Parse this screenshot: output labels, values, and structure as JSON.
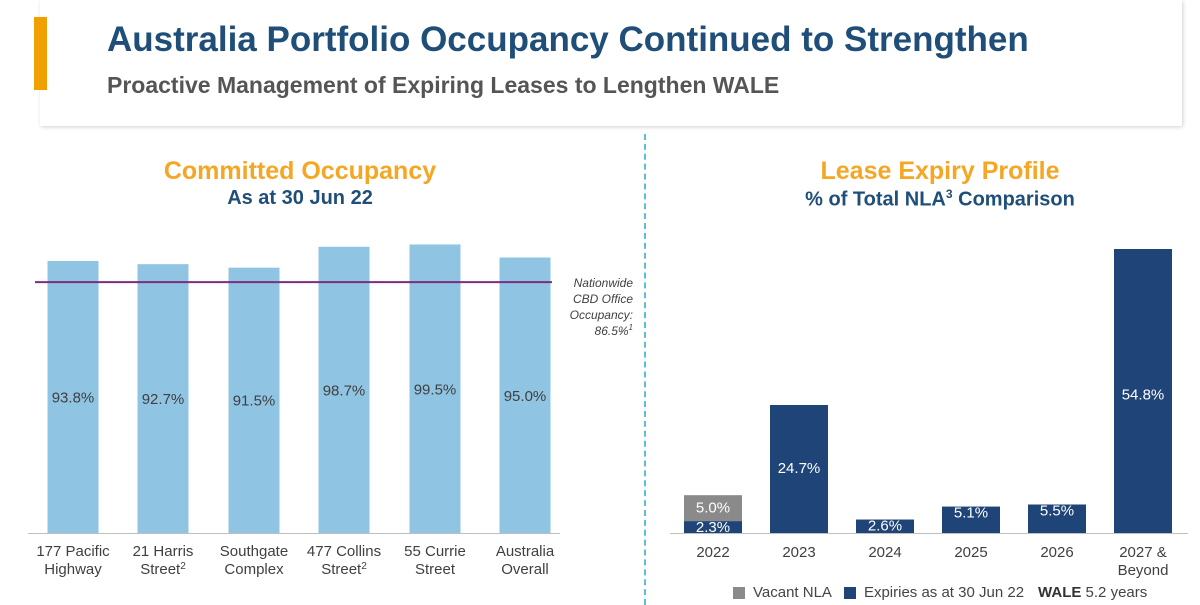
{
  "header": {
    "title": "Australia Portfolio Occupancy Continued to Strengthen",
    "subtitle": "Proactive Management of Expiring Leases to Lengthen WALE"
  },
  "colors": {
    "accent": "#f0a000",
    "title": "#1f4e79",
    "subtitle": "#555555",
    "orange_heading": "#f5a623",
    "light_bar": "#8fc4e3",
    "dark_bar": "#1f4478",
    "vacant_bar": "#8a8a8a",
    "reference_line": "#7b2d80"
  },
  "chart_data": [
    {
      "type": "bar",
      "title": "Committed Occupancy",
      "subtitle": "As at 30 Jun 22",
      "categories": [
        [
          "177 Pacific",
          "Highway"
        ],
        [
          "21 Harris",
          "Street"
        ],
        [
          "Southgate",
          "Complex"
        ],
        [
          "477 Collins",
          "Street"
        ],
        [
          "55 Currie",
          "Street"
        ],
        [
          "Australia",
          "Overall"
        ]
      ],
      "superscripts": [
        "",
        "2",
        "",
        "2",
        "",
        ""
      ],
      "values": [
        93.8,
        92.7,
        91.5,
        98.7,
        99.5,
        95.0
      ],
      "labels": [
        "93.8%",
        "92.7%",
        "91.5%",
        "98.7%",
        "99.5%",
        "95.0%"
      ],
      "ylim": [
        0,
        100
      ],
      "reference": {
        "value": 86.5,
        "lines": [
          "Nationwide",
          "CBD Office",
          "Occupancy:",
          "86.5%"
        ],
        "superscript": "1"
      }
    },
    {
      "type": "stacked_bar",
      "title": "Lease Expiry Profile",
      "subtitle": "% of Total NLA",
      "subtitle_sup": "3",
      "subtitle_end": " Comparison",
      "categories": [
        [
          "2022"
        ],
        [
          "2023"
        ],
        [
          "2024"
        ],
        [
          "2025"
        ],
        [
          "2026"
        ],
        [
          "2027 &",
          "Beyond"
        ]
      ],
      "series": [
        {
          "name": "Expiries as at 30 Jun 22",
          "values": [
            2.3,
            24.7,
            2.6,
            5.1,
            5.5,
            54.8
          ],
          "labels": [
            "2.3%",
            "24.7%",
            "2.6%",
            "5.1%",
            "5.5%",
            "54.8%"
          ]
        },
        {
          "name": "Vacant NLA",
          "values": [
            5.0,
            0,
            0,
            0,
            0,
            0
          ],
          "labels": [
            "5.0%",
            "",
            "",
            "",
            "",
            ""
          ]
        }
      ],
      "ylim": [
        0,
        54.8
      ]
    }
  ],
  "legend": {
    "vacant": "Vacant NLA",
    "expiries": "Expiries as at 30 Jun 22",
    "wale_label": "WALE",
    "wale_value": "5.2 years"
  }
}
